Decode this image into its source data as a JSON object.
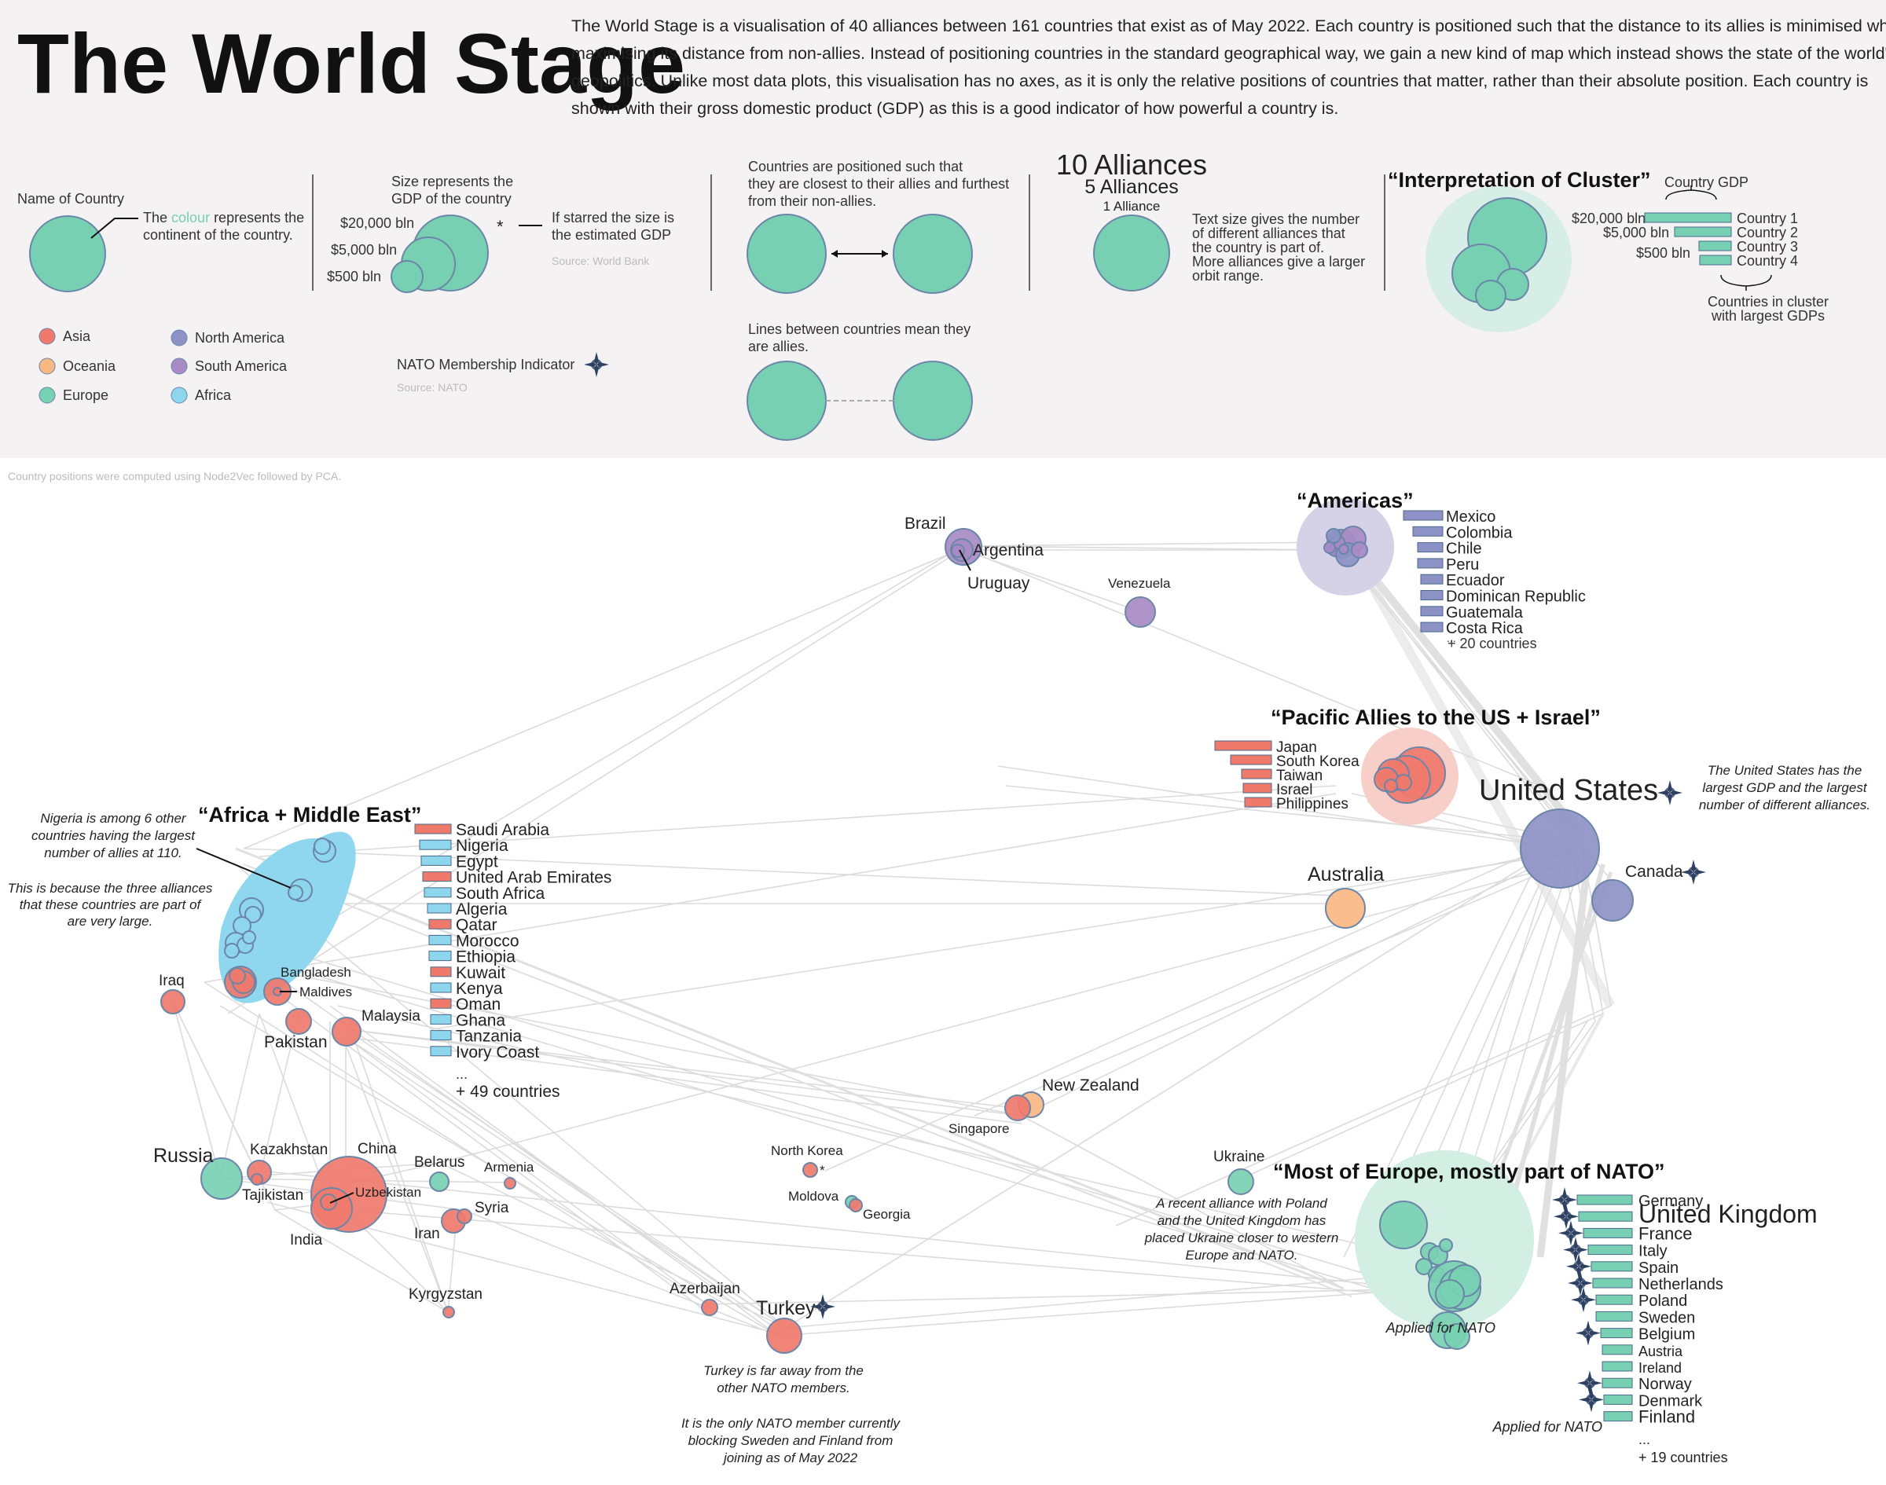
{
  "header": {
    "title": "The World Stage",
    "intro": [
      "The World Stage is a visualisation of 40 alliances between 161 countries that exist as of May 2022. Each country is positioned such that the distance to its allies is minimised while",
      "maximising its distance from non-allies. Instead of positioning countries in the standard geographical way, we gain a new kind of map which instead shows the state of the world's",
      "geopolitics. Unlike most data plots, this visualisation has no axes, as it is only the relative positions of countries that matter, rather than their absolute position. Each country is",
      "shown with their gross domestic product (GDP) as this is a good indicator of how powerful a country is."
    ]
  },
  "legend": {
    "name_of_country": "Name of Country",
    "colour_note_pre": "The ",
    "colour_word": "colour",
    "colour_note_post": " represents the",
    "colour_note_line2": "continent of the country.",
    "size_title": [
      "Size represents the",
      "GDP of the country"
    ],
    "gdp_20000": "$20,000 bln",
    "gdp_5000": "$5,000 bln",
    "gdp_500": "$500 bln",
    "star": "*",
    "starred_note": [
      "If starred the size is",
      "the estimated GDP"
    ],
    "size_source": "Source: World Bank",
    "position_note": [
      "Countries are positioned such that",
      "they are closest to their allies and furthest",
      "from their non-allies."
    ],
    "lines_note": [
      "Lines between countries mean they",
      "are allies."
    ],
    "alliances_10": "10 Alliances",
    "alliances_5": "5 Alliances",
    "alliances_1": "1 Alliance",
    "text_size_note": [
      "Text size gives the number",
      "of different alliances that",
      "the country is part of.",
      "More alliances give a larger",
      "orbit range."
    ],
    "cluster_title": "“Interpretation of Cluster”",
    "country_gdp": "Country GDP",
    "cluster_countries": [
      "Country 1",
      "Country 2",
      "Country 3",
      "Country 4"
    ],
    "cluster_note": [
      "Countries in cluster",
      "with largest GDPs"
    ],
    "continents": [
      {
        "name": "Asia",
        "color": "#ef7a6c"
      },
      {
        "name": "Oceania",
        "color": "#f9b784"
      },
      {
        "name": "Europe",
        "color": "#78d0b2"
      },
      {
        "name": "North America",
        "color": "#8d92c6"
      },
      {
        "name": "South America",
        "color": "#a88bc6"
      },
      {
        "name": "Africa",
        "color": "#8ed6ee"
      }
    ],
    "nato_indicator": "NATO Membership Indicator",
    "nato_source": "Source: NATO",
    "method_note": "Country positions were computed using Node2Vec followed by PCA."
  },
  "clusters": {
    "americas": {
      "title": "“Americas”",
      "countries": [
        "Mexico",
        "Colombia",
        "Chile",
        "Peru",
        "Ecuador",
        "Dominican Republic",
        "Guatemala",
        "Costa Rica"
      ],
      "more": "+ 20 countries"
    },
    "pacific": {
      "title": "“Pacific Allies to the US + Israel”",
      "countries": [
        "Japan",
        "South Korea",
        "Taiwan",
        "Israel",
        "Philippines"
      ]
    },
    "africa": {
      "title": "“Africa + Middle East”",
      "countries": [
        "Saudi Arabia",
        "Nigeria",
        "Egypt",
        "United Arab Emirates",
        "South Africa",
        "Algeria",
        "Qatar",
        "Morocco",
        "Ethiopia",
        "Kuwait",
        "Kenya",
        "Oman",
        "Ghana",
        "Tanzania",
        "Ivory Coast"
      ],
      "more": "+ 49 countries"
    },
    "europe": {
      "title": "“Most of Europe, mostly part of NATO”",
      "countries": [
        "Germany",
        "United Kingdom",
        "France",
        "Italy",
        "Spain",
        "Netherlands",
        "Poland",
        "Sweden",
        "Belgium",
        "Austria",
        "Ireland",
        "Norway",
        "Denmark",
        "Finland"
      ],
      "applied_for_nato": "Applied for NATO",
      "more": "+ 19 countries"
    }
  },
  "countries": {
    "brazil": "Brazil",
    "argentina": "Argentina",
    "uruguay": "Uruguay",
    "venezuela": "Venezuela",
    "united_states": "United States",
    "canada": "Canada",
    "australia": "Australia",
    "new_zealand": "New Zealand",
    "singapore": "Singapore",
    "ukraine": "Ukraine",
    "iraq": "Iraq",
    "bangladesh": "Bangladesh",
    "maldives": "Maldives",
    "pakistan": "Pakistan",
    "malaysia": "Malaysia",
    "russia": "Russia",
    "kazakhstan": "Kazakhstan",
    "tajikistan": "Tajikistan",
    "china": "China",
    "uzbekistan": "Uzbekistan",
    "india": "India",
    "belarus": "Belarus",
    "armenia": "Armenia",
    "syria": "Syria",
    "iran": "Iran",
    "kyrgyzstan": "Kyrgyzstan",
    "north_korea": "North Korea",
    "moldova": "Moldova",
    "georgia": "Georgia",
    "azerbaijan": "Azerbaijan",
    "turkey": "Turkey"
  },
  "annotations": {
    "nigeria": [
      "Nigeria is among 6 other",
      "countries having the largest",
      "number of allies at 110.",
      "",
      "This is because the three alliances",
      "that these countries are part of",
      "are very large."
    ],
    "us": [
      "The United States has the",
      "largest GDP and the largest",
      "number of different alliances."
    ],
    "ukraine": [
      "A recent alliance with Poland",
      "and the United Kingdom has",
      "placed Ukraine closer to western",
      "Europe and NATO."
    ],
    "turkey": [
      "Turkey is far away from the",
      "other NATO members.",
      "",
      "It is the only NATO member currently",
      "blocking Sweden and Finland from",
      "joining as of May 2022"
    ],
    "nk_star": "*"
  }
}
